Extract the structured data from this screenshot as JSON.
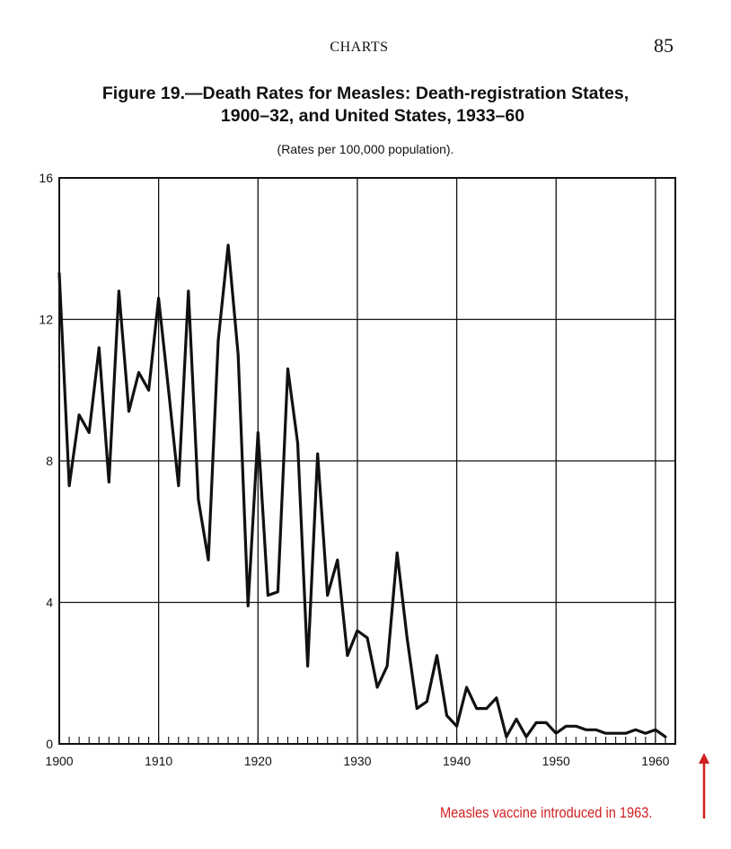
{
  "page": {
    "running_head": "CHARTS",
    "page_number": "85"
  },
  "figure": {
    "title_line1": "Figure 19.—Death Rates for Measles: Death-registration States,",
    "title_line2": "1900–32, and United States, 1933–60",
    "subtitle": "(Rates per 100,000 population)."
  },
  "annotation": {
    "note": "Measles vaccine introduced in 1963.",
    "note_color": "#d11f1f",
    "arrow_icon": "up-arrow-icon"
  },
  "chart_data": {
    "type": "line",
    "title": "Death Rates for Measles: Death-registration States, 1900–32, and United States, 1933–60",
    "subtitle": "(Rates per 100,000 population).",
    "xlabel": "",
    "ylabel": "",
    "xlim": [
      1900,
      1962
    ],
    "ylim": [
      0,
      16
    ],
    "x_ticks": [
      1900,
      1910,
      1920,
      1930,
      1940,
      1950,
      1960
    ],
    "y_ticks": [
      0,
      4,
      8,
      12,
      16
    ],
    "grid": true,
    "legend": "none",
    "series": [
      {
        "x": [
          1900,
          1901,
          1902,
          1903,
          1904,
          1905,
          1906,
          1907,
          1908,
          1909,
          1910,
          1911,
          1912,
          1913,
          1914,
          1915,
          1916,
          1917,
          1918,
          1919,
          1920,
          1921,
          1922,
          1923,
          1924,
          1925,
          1926,
          1927,
          1928,
          1929,
          1930,
          1931,
          1932,
          1933,
          1934,
          1935,
          1936,
          1937,
          1938,
          1939,
          1940,
          1941,
          1942,
          1943,
          1944,
          1945,
          1946,
          1947,
          1948,
          1949,
          1950,
          1951,
          1952,
          1953,
          1954,
          1955,
          1956,
          1957,
          1958,
          1959,
          1960,
          1961
        ],
        "values": [
          13.3,
          7.3,
          9.3,
          8.8,
          11.2,
          7.4,
          12.8,
          9.4,
          10.5,
          10.0,
          12.6,
          10.0,
          7.3,
          12.8,
          6.9,
          5.2,
          11.4,
          14.1,
          11.0,
          3.9,
          8.8,
          4.2,
          4.3,
          10.6,
          8.5,
          2.2,
          8.2,
          4.2,
          5.2,
          2.5,
          3.2,
          3.0,
          1.6,
          2.2,
          5.4,
          3.0,
          1.0,
          1.2,
          2.5,
          0.8,
          0.5,
          1.6,
          1.0,
          1.0,
          1.3,
          0.2,
          0.7,
          0.2,
          0.6,
          0.6,
          0.3,
          0.5,
          0.5,
          0.4,
          0.4,
          0.3,
          0.3,
          0.3,
          0.4,
          0.3,
          0.4,
          0.2
        ]
      }
    ]
  }
}
